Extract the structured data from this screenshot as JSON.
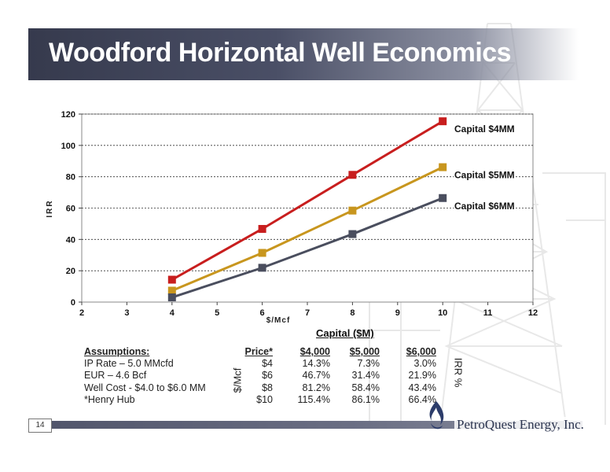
{
  "slide": {
    "title": "Woodford Horizontal Well Economics",
    "page_number": "14",
    "company": "PetroQuest Energy, Inc."
  },
  "table": {
    "section_title": "Capital ($M)",
    "header": [
      "Assumptions:",
      "Price*",
      "$4,000",
      "$5,000",
      "$6,000"
    ],
    "rows": [
      [
        "IP Rate – 5.0 MMcfd",
        "$4",
        "14.3%",
        "7.3%",
        "3.0%"
      ],
      [
        "EUR – 4.6 Bcf",
        "$6",
        "46.7%",
        "31.4%",
        "21.9%"
      ],
      [
        "Well Cost - $4.0 to $6.0 MM",
        "$8",
        "81.2%",
        "58.4%",
        "43.4%"
      ],
      [
        "*Henry Hub",
        "$10",
        "115.4%",
        "86.1%",
        "66.4%"
      ]
    ],
    "left_axis_label": "$/Mcf",
    "right_axis_label": "IRR %"
  },
  "chart_data": {
    "type": "line",
    "xlabel": "$/Mcf",
    "ylabel": "IRR",
    "xlim": [
      2,
      12
    ],
    "ylim": [
      0,
      120
    ],
    "x_ticks": [
      "2",
      "3",
      "4",
      "5",
      "6",
      "7",
      "8",
      "9",
      "10",
      "11",
      "12"
    ],
    "y_ticks": [
      "0",
      "20",
      "40",
      "60",
      "80",
      "100",
      "120"
    ],
    "grid": "horizontal dashed",
    "series": [
      {
        "name": "Capital $4MM",
        "color": "#c81e1e",
        "x": [
          4,
          6,
          8,
          10
        ],
        "values": [
          14.3,
          46.7,
          81.2,
          115.4
        ]
      },
      {
        "name": "Capital $5MM",
        "color": "#c8961e",
        "x": [
          4,
          6,
          8,
          10
        ],
        "values": [
          7.3,
          31.4,
          58.4,
          86.1
        ]
      },
      {
        "name": "Capital $6MM",
        "color": "#4a4e5e",
        "x": [
          4,
          6,
          8,
          10
        ],
        "values": [
          3.0,
          21.9,
          43.4,
          66.4
        ]
      }
    ]
  }
}
